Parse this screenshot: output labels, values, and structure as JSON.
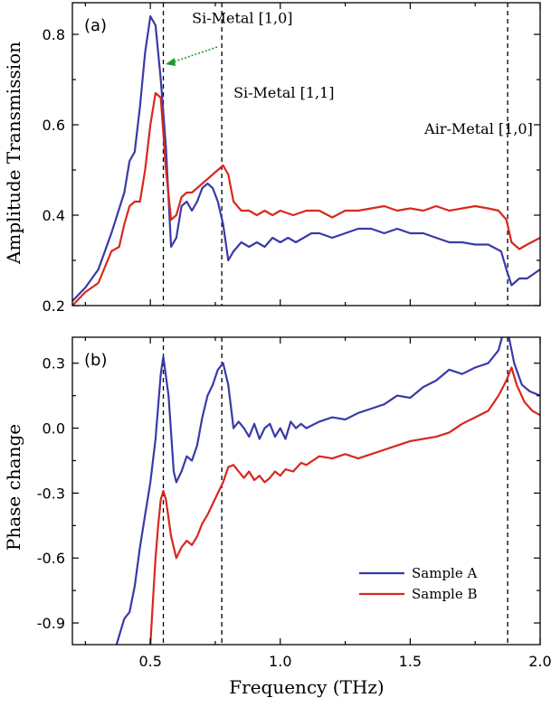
{
  "chart_data": [
    {
      "panel": "a",
      "type": "line",
      "panel_label": "(a)",
      "xlabel": "",
      "ylabel": "Amplitude Transmission",
      "xlim": [
        0.2,
        2.0
      ],
      "ylim": [
        0.2,
        0.87
      ],
      "xticks": [
        "0.5",
        "1.0",
        "1.5",
        "2.0"
      ],
      "xtick_values": [
        0.5,
        1.0,
        1.5,
        2.0
      ],
      "yticks": [
        "0.2",
        "0.4",
        "0.6",
        "0.8"
      ],
      "ytick_values": [
        0.2,
        0.4,
        0.6,
        0.8
      ],
      "show_xtick_labels": false,
      "vlines": [
        0.55,
        0.775,
        1.875
      ],
      "annotations": [
        {
          "text": "Si-Metal [1,0]",
          "x": 0.66,
          "y": 0.825
        },
        {
          "text": "Si-Metal [1,1]",
          "x": 0.82,
          "y": 0.66
        },
        {
          "text": "Air-Metal [1,0]",
          "x": 1.555,
          "y": 0.58
        }
      ],
      "series": [
        {
          "name": "Sample A",
          "color": "#3a3aa8",
          "x": [
            0.2,
            0.25,
            0.3,
            0.35,
            0.4,
            0.42,
            0.44,
            0.46,
            0.48,
            0.5,
            0.52,
            0.54,
            0.56,
            0.58,
            0.6,
            0.62,
            0.64,
            0.66,
            0.68,
            0.7,
            0.72,
            0.74,
            0.76,
            0.78,
            0.8,
            0.82,
            0.85,
            0.88,
            0.91,
            0.94,
            0.97,
            1.0,
            1.03,
            1.06,
            1.09,
            1.12,
            1.15,
            1.2,
            1.25,
            1.3,
            1.35,
            1.4,
            1.45,
            1.5,
            1.55,
            1.6,
            1.65,
            1.7,
            1.75,
            1.8,
            1.85,
            1.87,
            1.89,
            1.92,
            1.95,
            2.0
          ],
          "y": [
            0.21,
            0.24,
            0.28,
            0.36,
            0.45,
            0.52,
            0.54,
            0.64,
            0.76,
            0.84,
            0.82,
            0.7,
            0.55,
            0.33,
            0.35,
            0.42,
            0.43,
            0.41,
            0.43,
            0.46,
            0.47,
            0.46,
            0.43,
            0.38,
            0.3,
            0.32,
            0.34,
            0.33,
            0.34,
            0.33,
            0.35,
            0.34,
            0.35,
            0.34,
            0.35,
            0.36,
            0.36,
            0.35,
            0.36,
            0.37,
            0.37,
            0.36,
            0.37,
            0.36,
            0.36,
            0.35,
            0.34,
            0.34,
            0.335,
            0.335,
            0.32,
            0.28,
            0.245,
            0.26,
            0.26,
            0.28
          ]
        },
        {
          "name": "Sample B",
          "color": "#d8281e",
          "x": [
            0.2,
            0.25,
            0.3,
            0.35,
            0.38,
            0.4,
            0.42,
            0.44,
            0.46,
            0.48,
            0.5,
            0.52,
            0.54,
            0.56,
            0.58,
            0.6,
            0.62,
            0.64,
            0.66,
            0.68,
            0.7,
            0.72,
            0.74,
            0.76,
            0.78,
            0.8,
            0.82,
            0.85,
            0.88,
            0.91,
            0.94,
            0.97,
            1.0,
            1.05,
            1.1,
            1.15,
            1.2,
            1.25,
            1.3,
            1.35,
            1.4,
            1.45,
            1.5,
            1.55,
            1.6,
            1.65,
            1.7,
            1.75,
            1.8,
            1.84,
            1.87,
            1.89,
            1.92,
            1.95,
            2.0
          ],
          "y": [
            0.2,
            0.23,
            0.25,
            0.32,
            0.33,
            0.38,
            0.42,
            0.43,
            0.43,
            0.5,
            0.6,
            0.67,
            0.66,
            0.5,
            0.39,
            0.4,
            0.44,
            0.45,
            0.45,
            0.46,
            0.47,
            0.48,
            0.49,
            0.5,
            0.51,
            0.49,
            0.43,
            0.41,
            0.41,
            0.4,
            0.41,
            0.4,
            0.41,
            0.4,
            0.41,
            0.41,
            0.395,
            0.41,
            0.41,
            0.415,
            0.42,
            0.41,
            0.415,
            0.41,
            0.42,
            0.41,
            0.415,
            0.42,
            0.415,
            0.41,
            0.39,
            0.34,
            0.325,
            0.335,
            0.35
          ]
        }
      ]
    },
    {
      "panel": "b",
      "type": "line",
      "panel_label": "(b)",
      "xlabel": "Frequency (THz)",
      "ylabel": "Phase change",
      "xlim": [
        0.2,
        2.0
      ],
      "ylim": [
        -1.0,
        0.42
      ],
      "xticks": [
        "0.5",
        "1.0",
        "1.5",
        "2.0"
      ],
      "xtick_values": [
        0.5,
        1.0,
        1.5,
        2.0
      ],
      "yticks": [
        "0.3",
        "0.0",
        "-0.3",
        "-0.6",
        "-0.9"
      ],
      "ytick_values": [
        0.3,
        0.0,
        -0.3,
        -0.6,
        -0.9
      ],
      "show_xtick_labels": true,
      "vlines": [
        0.55,
        0.775,
        1.875
      ],
      "legend": {
        "position": "lower-right",
        "entries": [
          "Sample A",
          "Sample B"
        ]
      },
      "series": [
        {
          "name": "Sample A",
          "color": "#3a3aa8",
          "x": [
            0.37,
            0.4,
            0.42,
            0.44,
            0.46,
            0.48,
            0.5,
            0.52,
            0.54,
            0.55,
            0.57,
            0.59,
            0.6,
            0.62,
            0.64,
            0.66,
            0.68,
            0.7,
            0.72,
            0.74,
            0.76,
            0.78,
            0.8,
            0.82,
            0.84,
            0.86,
            0.88,
            0.9,
            0.92,
            0.94,
            0.96,
            0.98,
            1.0,
            1.02,
            1.04,
            1.06,
            1.08,
            1.1,
            1.15,
            1.2,
            1.25,
            1.3,
            1.35,
            1.4,
            1.45,
            1.5,
            1.55,
            1.6,
            1.65,
            1.7,
            1.75,
            1.8,
            1.84,
            1.86,
            1.88,
            1.9,
            1.93,
            1.96,
            2.0
          ],
          "y": [
            -1.0,
            -0.88,
            -0.85,
            -0.73,
            -0.55,
            -0.4,
            -0.25,
            -0.05,
            0.25,
            0.33,
            0.15,
            -0.2,
            -0.25,
            -0.2,
            -0.13,
            -0.15,
            -0.08,
            0.05,
            0.15,
            0.2,
            0.27,
            0.3,
            0.2,
            0.0,
            0.03,
            0.0,
            -0.04,
            0.02,
            -0.05,
            0.0,
            0.02,
            -0.04,
            0.0,
            -0.05,
            0.03,
            0.0,
            0.02,
            0.0,
            0.03,
            0.05,
            0.04,
            0.07,
            0.09,
            0.11,
            0.15,
            0.14,
            0.19,
            0.22,
            0.27,
            0.25,
            0.28,
            0.3,
            0.36,
            0.45,
            0.42,
            0.3,
            0.2,
            0.17,
            0.15
          ]
        },
        {
          "name": "Sample B",
          "color": "#d8281e",
          "x": [
            0.5,
            0.51,
            0.52,
            0.53,
            0.54,
            0.55,
            0.56,
            0.58,
            0.6,
            0.62,
            0.64,
            0.66,
            0.68,
            0.7,
            0.72,
            0.74,
            0.76,
            0.78,
            0.8,
            0.82,
            0.84,
            0.86,
            0.88,
            0.9,
            0.92,
            0.94,
            0.96,
            0.98,
            1.0,
            1.02,
            1.05,
            1.08,
            1.1,
            1.15,
            1.2,
            1.25,
            1.3,
            1.35,
            1.4,
            1.45,
            1.5,
            1.55,
            1.6,
            1.65,
            1.7,
            1.75,
            1.8,
            1.84,
            1.87,
            1.89,
            1.91,
            1.94,
            1.97,
            2.0
          ],
          "y": [
            -1.0,
            -0.8,
            -0.6,
            -0.45,
            -0.33,
            -0.29,
            -0.33,
            -0.5,
            -0.6,
            -0.55,
            -0.52,
            -0.54,
            -0.5,
            -0.44,
            -0.4,
            -0.35,
            -0.3,
            -0.25,
            -0.18,
            -0.17,
            -0.2,
            -0.23,
            -0.2,
            -0.24,
            -0.22,
            -0.25,
            -0.23,
            -0.2,
            -0.22,
            -0.19,
            -0.2,
            -0.16,
            -0.17,
            -0.13,
            -0.14,
            -0.12,
            -0.14,
            -0.12,
            -0.1,
            -0.08,
            -0.06,
            -0.05,
            -0.04,
            -0.02,
            0.02,
            0.05,
            0.08,
            0.15,
            0.22,
            0.28,
            0.2,
            0.12,
            0.08,
            0.06
          ]
        }
      ]
    }
  ]
}
